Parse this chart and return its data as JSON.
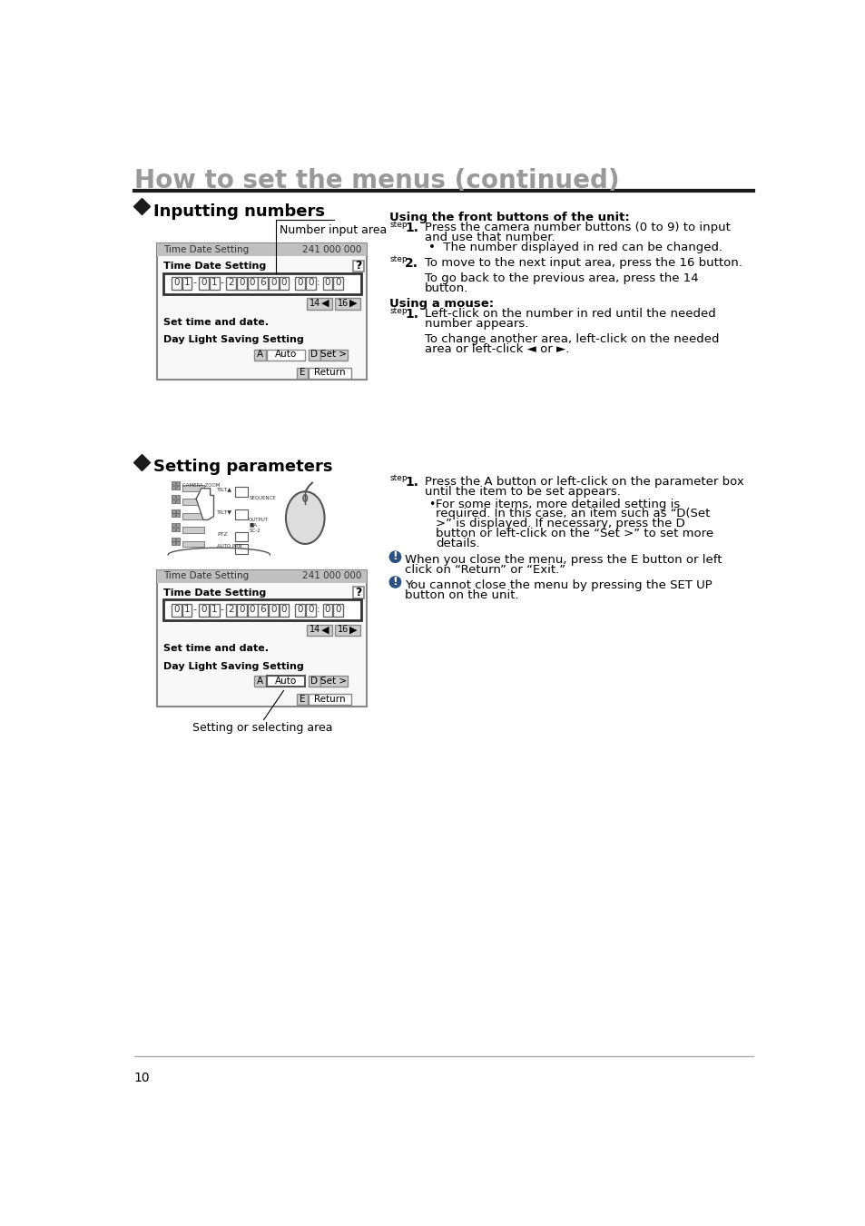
{
  "page_title": "How to set the menus (continued)",
  "page_number": "10",
  "background_color": "#ffffff",
  "title_color": "#999999",
  "title_fontsize": 20,
  "divider_color": "#1a1a1a",
  "section1_title": "Inputting numbers",
  "section2_title": "Setting parameters",
  "diamond_color": "#1a1a1a",
  "number_input_area_label": "Number input area",
  "setting_area_label": "Setting or selecting area",
  "screen_header_bg": "#bbbbbb",
  "screen_bg": "#f8f8f8",
  "digits": [
    "0",
    "1",
    "-",
    "0",
    "1",
    "-",
    "2",
    "0",
    "0",
    "6",
    "  ",
    "0",
    "0",
    ":",
    "0",
    "0",
    ":",
    "0",
    "0"
  ],
  "right_texts": {
    "front_title": "Using the front buttons of the unit:",
    "s1_label": "step",
    "s1_num": "1.",
    "s1_line1": "Press the camera number buttons (0 to 9) to input",
    "s1_line2": "and use that number.",
    "s1_bullet": "The number displayed in red can be changed.",
    "s2_label": "step",
    "s2_num": "2.",
    "s2_line1": "To move to the next input area, press the 16 button.",
    "s2_line2": "To go back to the previous area, press the 14",
    "s2_line3": "button.",
    "mouse_title": "Using a mouse:",
    "m1_label": "step",
    "m1_num": "1.",
    "m1_line1": "Left-click on the number in red until the needed",
    "m1_line2": "number appears.",
    "m1_line3": "To change another area, left-click on the needed",
    "m1_line4": "area or left-click ◄ or ►.",
    "p1_label": "step",
    "p1_num": "1.",
    "p1_line1": "Press the A button or left-click on the parameter box",
    "p1_line2": "until the item to be set appears.",
    "pb_line1": "For some items, more detailed setting is",
    "pb_line2": "required. In this case, an item such as “D(Set",
    "pb_line3": ">” is displayed. If necessary, press the D",
    "pb_line4": "button or left-click on the “Set >” to set more",
    "pb_line5": "details.",
    "i1_line1": "When you close the menu, press the E button or left",
    "i1_line2": "click on “Return” or “Exit.”",
    "i2_line1": "You cannot close the menu by pressing the SET UP",
    "i2_line2": "button on the unit."
  }
}
